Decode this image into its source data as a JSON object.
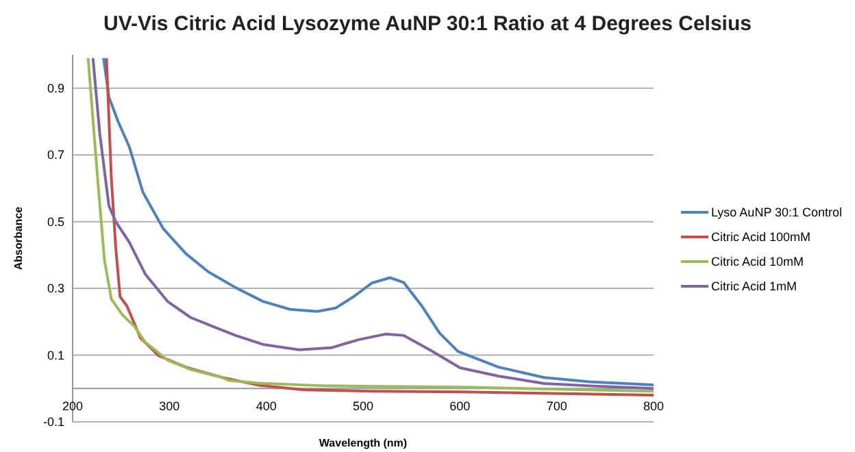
{
  "chart_data": {
    "type": "line",
    "title": "UV-Vis Citric Acid Lysozyme AuNP 30:1 Ratio at 4 Degrees Celsius",
    "xlabel": "Wavelength (nm)",
    "ylabel": "Absorbance",
    "xlim": [
      200,
      800
    ],
    "xticks": [
      200,
      300,
      400,
      500,
      600,
      700,
      800
    ],
    "ylim": [
      -0.1,
      1.0
    ],
    "yticks": [
      -0.1,
      0.1,
      0.3,
      0.5,
      0.7,
      0.9
    ],
    "grid": "y",
    "legend": "right",
    "marker": "none",
    "series": [
      {
        "name": "Lyso AuNP 30:1 Control",
        "color": "#4f81bd",
        "x": [
          232,
          237.5,
          247,
          258.6,
          272.6,
          293.6,
          317,
          340,
          368.5,
          396.6,
          424.7,
          452.8,
          471.6,
          490,
          509,
          527.8,
          541.8,
          560.5,
          579,
          598,
          640,
          687,
          734,
          800
        ],
        "values": [
          0.99,
          0.873,
          0.8,
          0.724,
          0.588,
          0.479,
          0.404,
          0.35,
          0.302,
          0.261,
          0.237,
          0.231,
          0.241,
          0.275,
          0.316,
          0.332,
          0.318,
          0.248,
          0.166,
          0.111,
          0.064,
          0.033,
          0.02,
          0.011
        ]
      },
      {
        "name": "Citric Acid 100mM",
        "color": "#c0504d",
        "x": [
          235,
          240,
          244.5,
          249,
          256,
          270,
          289,
          317,
          354.5,
          392,
          439,
          509,
          602.7,
          800
        ],
        "values": [
          0.99,
          0.63,
          0.424,
          0.275,
          0.248,
          0.152,
          0.098,
          0.064,
          0.033,
          0.01,
          -0.004,
          -0.008,
          -0.01,
          -0.02
        ]
      },
      {
        "name": "Citric Acid 10mM",
        "color": "#9bbb59",
        "x": [
          216,
          225.8,
          232.9,
          240,
          251.6,
          263.5,
          275,
          298,
          321.8,
          354.5,
          361.5,
          392,
          462,
          602.7,
          800
        ],
        "values": [
          0.99,
          0.63,
          0.384,
          0.268,
          0.22,
          0.187,
          0.139,
          0.085,
          0.057,
          0.033,
          0.024,
          0.016,
          0.008,
          0.004,
          -0.008
        ]
      },
      {
        "name": "Citric Acid 1mM",
        "color": "#8064a2",
        "x": [
          221,
          228,
          237.5,
          244.5,
          258.6,
          275,
          298,
          321.8,
          350,
          368.5,
          396.6,
          434,
          467,
          495,
          523,
          541.8,
          570,
          600,
          640,
          687,
          734,
          800
        ],
        "values": [
          0.99,
          0.765,
          0.547,
          0.5,
          0.438,
          0.343,
          0.261,
          0.213,
          0.18,
          0.159,
          0.132,
          0.116,
          0.122,
          0.146,
          0.163,
          0.159,
          0.114,
          0.062,
          0.037,
          0.015,
          0.008,
          0.0
        ]
      }
    ]
  }
}
